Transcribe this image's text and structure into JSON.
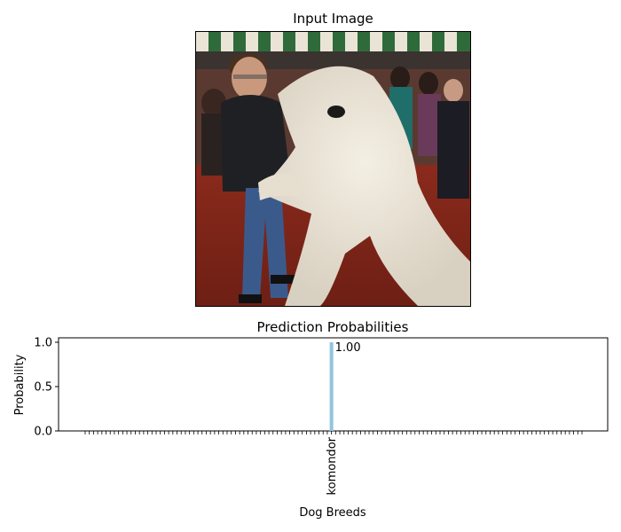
{
  "image_panel": {
    "title": "Input Image",
    "subject": "photo-of-man-hugging-large-white-shaggy-dog"
  },
  "chart_data": {
    "type": "bar",
    "title": "Prediction Probabilities",
    "xlabel": "Dog Breeds",
    "ylabel": "Probability",
    "ylim": [
      0,
      1.05
    ],
    "yticks": [
      0.0,
      0.5,
      1.0
    ],
    "ytick_labels": [
      "0.0",
      "0.5",
      "1.0"
    ],
    "category_count": 120,
    "highlight": {
      "index": 59,
      "label": "komondor",
      "value": 1.0,
      "value_label": "1.00"
    },
    "bar_color": "#92c5de",
    "grid": false
  }
}
